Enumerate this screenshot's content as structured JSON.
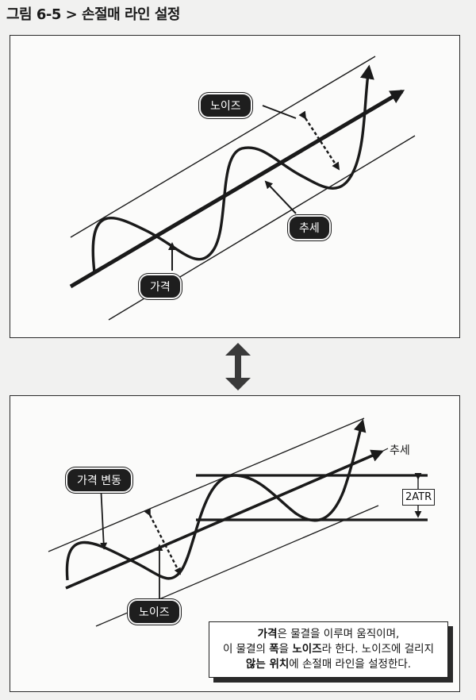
{
  "figure": {
    "title": "그림 6-5 > 손절매 라인 설정"
  },
  "top_panel": {
    "labels": {
      "noise": "노이즈",
      "trend": "추세",
      "price": "가격"
    }
  },
  "bottom_panel": {
    "labels": {
      "price_fluctuation": "가격 변동",
      "noise": "노이즈",
      "trend": "추세",
      "atr": "2ATR"
    },
    "note": {
      "line1_bold": "가격",
      "line1_rest": "은 물결을 이루며 움직이며,",
      "line2_prefix": "이 물결의 ",
      "line2_bold1": "폭",
      "line2_mid": "을 ",
      "line2_bold2": "노이즈",
      "line2_rest": "라 한다. 노이즈에 걸리지",
      "line3_bold": "않는 위치",
      "line3_rest": "에 손절매 라인을 설정한다."
    }
  }
}
